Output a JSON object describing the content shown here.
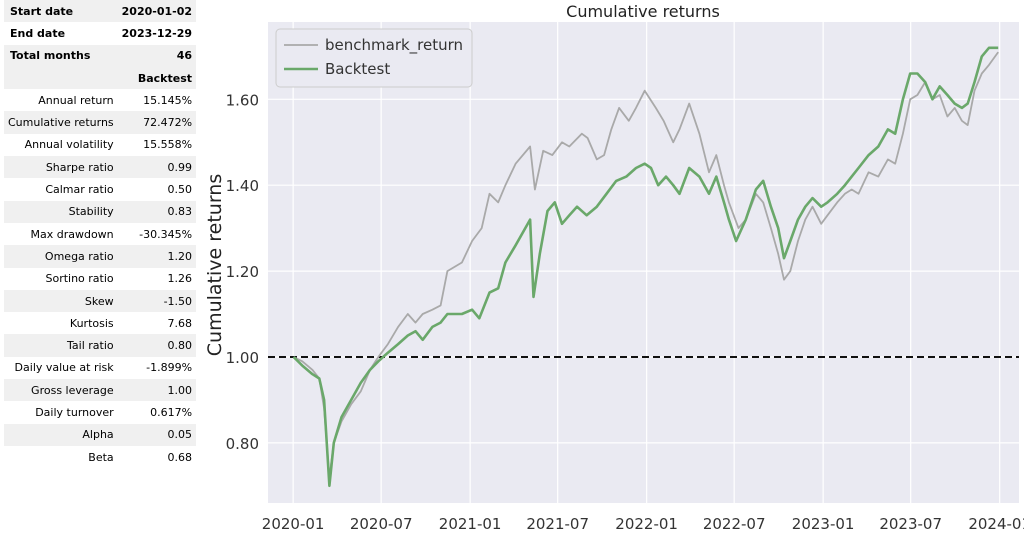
{
  "stats": {
    "header_rows": [
      {
        "label": "Start date",
        "value": "2020-01-02"
      },
      {
        "label": "End date",
        "value": "2023-12-29"
      },
      {
        "label": "Total months",
        "value": "46"
      }
    ],
    "column_header": "Backtest",
    "rows": [
      {
        "label": "Annual return",
        "value": "15.145%"
      },
      {
        "label": "Cumulative returns",
        "value": "72.472%"
      },
      {
        "label": "Annual volatility",
        "value": "15.558%"
      },
      {
        "label": "Sharpe ratio",
        "value": "0.99"
      },
      {
        "label": "Calmar ratio",
        "value": "0.50"
      },
      {
        "label": "Stability",
        "value": "0.83"
      },
      {
        "label": "Max drawdown",
        "value": "-30.345%"
      },
      {
        "label": "Omega ratio",
        "value": "1.20"
      },
      {
        "label": "Sortino ratio",
        "value": "1.26"
      },
      {
        "label": "Skew",
        "value": "-1.50"
      },
      {
        "label": "Kurtosis",
        "value": "7.68"
      },
      {
        "label": "Tail ratio",
        "value": "0.80"
      },
      {
        "label": "Daily value at risk",
        "value": "-1.899%"
      },
      {
        "label": "Gross leverage",
        "value": "1.00"
      },
      {
        "label": "Daily turnover",
        "value": "0.617%"
      },
      {
        "label": "Alpha",
        "value": "0.05"
      },
      {
        "label": "Beta",
        "value": "0.68"
      }
    ]
  },
  "chart_data": {
    "type": "line",
    "title": "Cumulative returns",
    "xlabel": "",
    "ylabel": "Cumulative returns",
    "x_tick_labels": [
      "2020-01",
      "2020-07",
      "2021-01",
      "2021-07",
      "2022-01",
      "2022-07",
      "2023-01",
      "2023-07",
      "2024-01"
    ],
    "y_ticks": [
      0.8,
      1.0,
      1.2,
      1.4,
      1.6
    ],
    "y_tick_labels": [
      "0.80",
      "1.00",
      "1.20",
      "1.40",
      "1.60"
    ],
    "xlim": [
      "2019-11-10",
      "2024-02-10"
    ],
    "ylim": [
      0.66,
      1.78
    ],
    "reference_line": 1.0,
    "grid": true,
    "legend_position": "top-left",
    "series": [
      {
        "name": "benchmark_return",
        "color": "#a9a9a9",
        "points": [
          [
            "2020-01-02",
            1.0
          ],
          [
            "2020-01-20",
            0.99
          ],
          [
            "2020-02-10",
            0.97
          ],
          [
            "2020-02-24",
            0.95
          ],
          [
            "2020-03-05",
            0.88
          ],
          [
            "2020-03-16",
            0.72
          ],
          [
            "2020-03-25",
            0.8
          ],
          [
            "2020-04-10",
            0.85
          ],
          [
            "2020-04-30",
            0.89
          ],
          [
            "2020-05-20",
            0.92
          ],
          [
            "2020-06-08",
            0.97
          ],
          [
            "2020-06-25",
            1.0
          ],
          [
            "2020-07-15",
            1.03
          ],
          [
            "2020-08-05",
            1.07
          ],
          [
            "2020-08-25",
            1.1
          ],
          [
            "2020-09-10",
            1.08
          ],
          [
            "2020-09-25",
            1.1
          ],
          [
            "2020-10-15",
            1.11
          ],
          [
            "2020-11-01",
            1.12
          ],
          [
            "2020-11-15",
            1.2
          ],
          [
            "2020-12-15",
            1.22
          ],
          [
            "2021-01-05",
            1.27
          ],
          [
            "2021-01-25",
            1.3
          ],
          [
            "2021-02-10",
            1.38
          ],
          [
            "2021-02-28",
            1.36
          ],
          [
            "2021-03-15",
            1.4
          ],
          [
            "2021-04-05",
            1.45
          ],
          [
            "2021-05-05",
            1.49
          ],
          [
            "2021-05-15",
            1.39
          ],
          [
            "2021-06-01",
            1.48
          ],
          [
            "2021-06-20",
            1.47
          ],
          [
            "2021-07-10",
            1.5
          ],
          [
            "2021-07-25",
            1.49
          ],
          [
            "2021-08-20",
            1.52
          ],
          [
            "2021-09-01",
            1.51
          ],
          [
            "2021-09-20",
            1.46
          ],
          [
            "2021-10-05",
            1.47
          ],
          [
            "2021-10-20",
            1.53
          ],
          [
            "2021-11-05",
            1.58
          ],
          [
            "2021-11-25",
            1.55
          ],
          [
            "2021-12-10",
            1.58
          ],
          [
            "2021-12-28",
            1.62
          ],
          [
            "2022-01-20",
            1.58
          ],
          [
            "2022-02-05",
            1.55
          ],
          [
            "2022-02-25",
            1.5
          ],
          [
            "2022-03-10",
            1.53
          ],
          [
            "2022-03-30",
            1.59
          ],
          [
            "2022-04-20",
            1.52
          ],
          [
            "2022-05-10",
            1.43
          ],
          [
            "2022-05-25",
            1.47
          ],
          [
            "2022-06-10",
            1.4
          ],
          [
            "2022-06-20",
            1.36
          ],
          [
            "2022-07-10",
            1.3
          ],
          [
            "2022-07-25",
            1.32
          ],
          [
            "2022-08-15",
            1.38
          ],
          [
            "2022-08-30",
            1.36
          ],
          [
            "2022-09-15",
            1.3
          ],
          [
            "2022-09-30",
            1.24
          ],
          [
            "2022-10-12",
            1.18
          ],
          [
            "2022-10-25",
            1.2
          ],
          [
            "2022-11-10",
            1.27
          ],
          [
            "2022-11-25",
            1.32
          ],
          [
            "2022-12-10",
            1.35
          ],
          [
            "2022-12-28",
            1.31
          ],
          [
            "2023-01-10",
            1.33
          ],
          [
            "2023-01-30",
            1.36
          ],
          [
            "2023-02-15",
            1.38
          ],
          [
            "2023-03-01",
            1.39
          ],
          [
            "2023-03-15",
            1.38
          ],
          [
            "2023-04-05",
            1.43
          ],
          [
            "2023-04-25",
            1.42
          ],
          [
            "2023-05-15",
            1.46
          ],
          [
            "2023-05-30",
            1.45
          ],
          [
            "2023-06-15",
            1.52
          ],
          [
            "2023-06-30",
            1.6
          ],
          [
            "2023-07-15",
            1.61
          ],
          [
            "2023-07-31",
            1.64
          ],
          [
            "2023-08-15",
            1.6
          ],
          [
            "2023-08-30",
            1.61
          ],
          [
            "2023-09-15",
            1.56
          ],
          [
            "2023-09-30",
            1.58
          ],
          [
            "2023-10-15",
            1.55
          ],
          [
            "2023-10-27",
            1.54
          ],
          [
            "2023-11-10",
            1.62
          ],
          [
            "2023-11-25",
            1.66
          ],
          [
            "2023-12-10",
            1.68
          ],
          [
            "2023-12-29",
            1.71
          ]
        ]
      },
      {
        "name": "Backtest",
        "color": "#6aa86a",
        "points": [
          [
            "2020-01-02",
            1.0
          ],
          [
            "2020-01-20",
            0.98
          ],
          [
            "2020-02-10",
            0.96
          ],
          [
            "2020-02-24",
            0.95
          ],
          [
            "2020-03-05",
            0.9
          ],
          [
            "2020-03-16",
            0.7
          ],
          [
            "2020-03-25",
            0.8
          ],
          [
            "2020-04-10",
            0.86
          ],
          [
            "2020-04-30",
            0.9
          ],
          [
            "2020-05-20",
            0.94
          ],
          [
            "2020-06-08",
            0.97
          ],
          [
            "2020-06-25",
            0.99
          ],
          [
            "2020-07-15",
            1.01
          ],
          [
            "2020-08-05",
            1.03
          ],
          [
            "2020-08-25",
            1.05
          ],
          [
            "2020-09-10",
            1.06
          ],
          [
            "2020-09-25",
            1.04
          ],
          [
            "2020-10-15",
            1.07
          ],
          [
            "2020-11-01",
            1.08
          ],
          [
            "2020-11-15",
            1.1
          ],
          [
            "2020-12-15",
            1.1
          ],
          [
            "2021-01-05",
            1.11
          ],
          [
            "2021-01-20",
            1.09
          ],
          [
            "2021-02-10",
            1.15
          ],
          [
            "2021-02-28",
            1.16
          ],
          [
            "2021-03-15",
            1.22
          ],
          [
            "2021-04-05",
            1.26
          ],
          [
            "2021-04-25",
            1.3
          ],
          [
            "2021-05-05",
            1.32
          ],
          [
            "2021-05-12",
            1.14
          ],
          [
            "2021-05-25",
            1.24
          ],
          [
            "2021-06-10",
            1.34
          ],
          [
            "2021-06-25",
            1.36
          ],
          [
            "2021-07-10",
            1.31
          ],
          [
            "2021-07-25",
            1.33
          ],
          [
            "2021-08-10",
            1.35
          ],
          [
            "2021-08-30",
            1.33
          ],
          [
            "2021-09-20",
            1.35
          ],
          [
            "2021-10-10",
            1.38
          ],
          [
            "2021-10-30",
            1.41
          ],
          [
            "2021-11-20",
            1.42
          ],
          [
            "2021-12-10",
            1.44
          ],
          [
            "2021-12-28",
            1.45
          ],
          [
            "2022-01-10",
            1.44
          ],
          [
            "2022-01-25",
            1.4
          ],
          [
            "2022-02-10",
            1.42
          ],
          [
            "2022-02-25",
            1.4
          ],
          [
            "2022-03-10",
            1.38
          ],
          [
            "2022-03-30",
            1.44
          ],
          [
            "2022-04-20",
            1.42
          ],
          [
            "2022-05-10",
            1.38
          ],
          [
            "2022-05-25",
            1.42
          ],
          [
            "2022-06-10",
            1.36
          ],
          [
            "2022-06-20",
            1.32
          ],
          [
            "2022-07-05",
            1.27
          ],
          [
            "2022-07-25",
            1.32
          ],
          [
            "2022-08-15",
            1.39
          ],
          [
            "2022-08-30",
            1.41
          ],
          [
            "2022-09-15",
            1.35
          ],
          [
            "2022-09-30",
            1.3
          ],
          [
            "2022-10-12",
            1.23
          ],
          [
            "2022-10-25",
            1.27
          ],
          [
            "2022-11-10",
            1.32
          ],
          [
            "2022-11-25",
            1.35
          ],
          [
            "2022-12-10",
            1.37
          ],
          [
            "2022-12-28",
            1.35
          ],
          [
            "2023-01-10",
            1.36
          ],
          [
            "2023-01-30",
            1.38
          ],
          [
            "2023-02-15",
            1.4
          ],
          [
            "2023-03-01",
            1.42
          ],
          [
            "2023-03-15",
            1.44
          ],
          [
            "2023-04-05",
            1.47
          ],
          [
            "2023-04-25",
            1.49
          ],
          [
            "2023-05-15",
            1.53
          ],
          [
            "2023-05-30",
            1.52
          ],
          [
            "2023-06-15",
            1.6
          ],
          [
            "2023-06-30",
            1.66
          ],
          [
            "2023-07-15",
            1.66
          ],
          [
            "2023-07-31",
            1.64
          ],
          [
            "2023-08-15",
            1.6
          ],
          [
            "2023-08-30",
            1.63
          ],
          [
            "2023-09-15",
            1.61
          ],
          [
            "2023-09-30",
            1.59
          ],
          [
            "2023-10-15",
            1.58
          ],
          [
            "2023-10-27",
            1.59
          ],
          [
            "2023-11-10",
            1.64
          ],
          [
            "2023-11-25",
            1.7
          ],
          [
            "2023-12-10",
            1.72
          ],
          [
            "2023-12-29",
            1.72
          ]
        ]
      }
    ]
  }
}
